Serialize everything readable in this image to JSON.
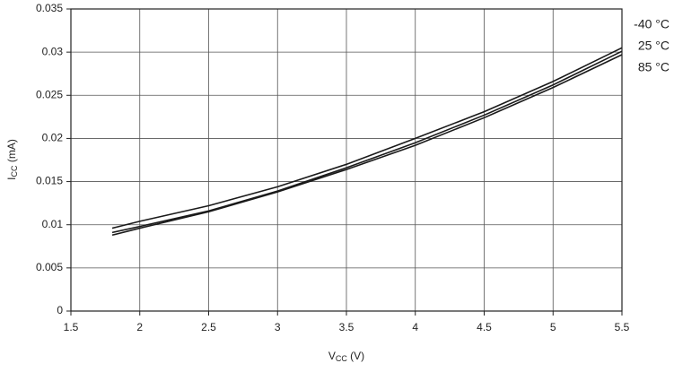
{
  "chart_data": {
    "type": "line",
    "x_label": {
      "symbol": "V",
      "subscript": "CC",
      "unit": " (V)"
    },
    "y_label": {
      "symbol": "I",
      "subscript": "CC",
      "unit": " (mA)"
    },
    "x": [
      1.8,
      2,
      2.5,
      3,
      3.5,
      4,
      4.5,
      5,
      5.5
    ],
    "series": [
      {
        "name": "-40 °C",
        "color": "#1a1a1a",
        "values": [
          0.0096,
          0.0104,
          0.0122,
          0.0144,
          0.017,
          0.02,
          0.0231,
          0.0266,
          0.0305
        ]
      },
      {
        "name": "25 °C",
        "color": "#1a1a1a",
        "values": [
          0.0091,
          0.0098,
          0.0116,
          0.0139,
          0.0166,
          0.0195,
          0.0227,
          0.0262,
          0.0301
        ]
      },
      {
        "name": "85 °C",
        "color": "#1a1a1a",
        "values": [
          0.0088,
          0.0096,
          0.0115,
          0.0138,
          0.0164,
          0.0192,
          0.0224,
          0.0259,
          0.0297
        ]
      }
    ],
    "xlim": [
      1.5,
      5.5
    ],
    "xticks": [
      1.5,
      2,
      2.5,
      3,
      3.5,
      4,
      4.5,
      5,
      5.5
    ],
    "ylim": [
      0,
      0.035
    ],
    "yticks": [
      0,
      0.005,
      0.01,
      0.015,
      0.02,
      0.025,
      0.03,
      0.035
    ],
    "grid": true
  }
}
